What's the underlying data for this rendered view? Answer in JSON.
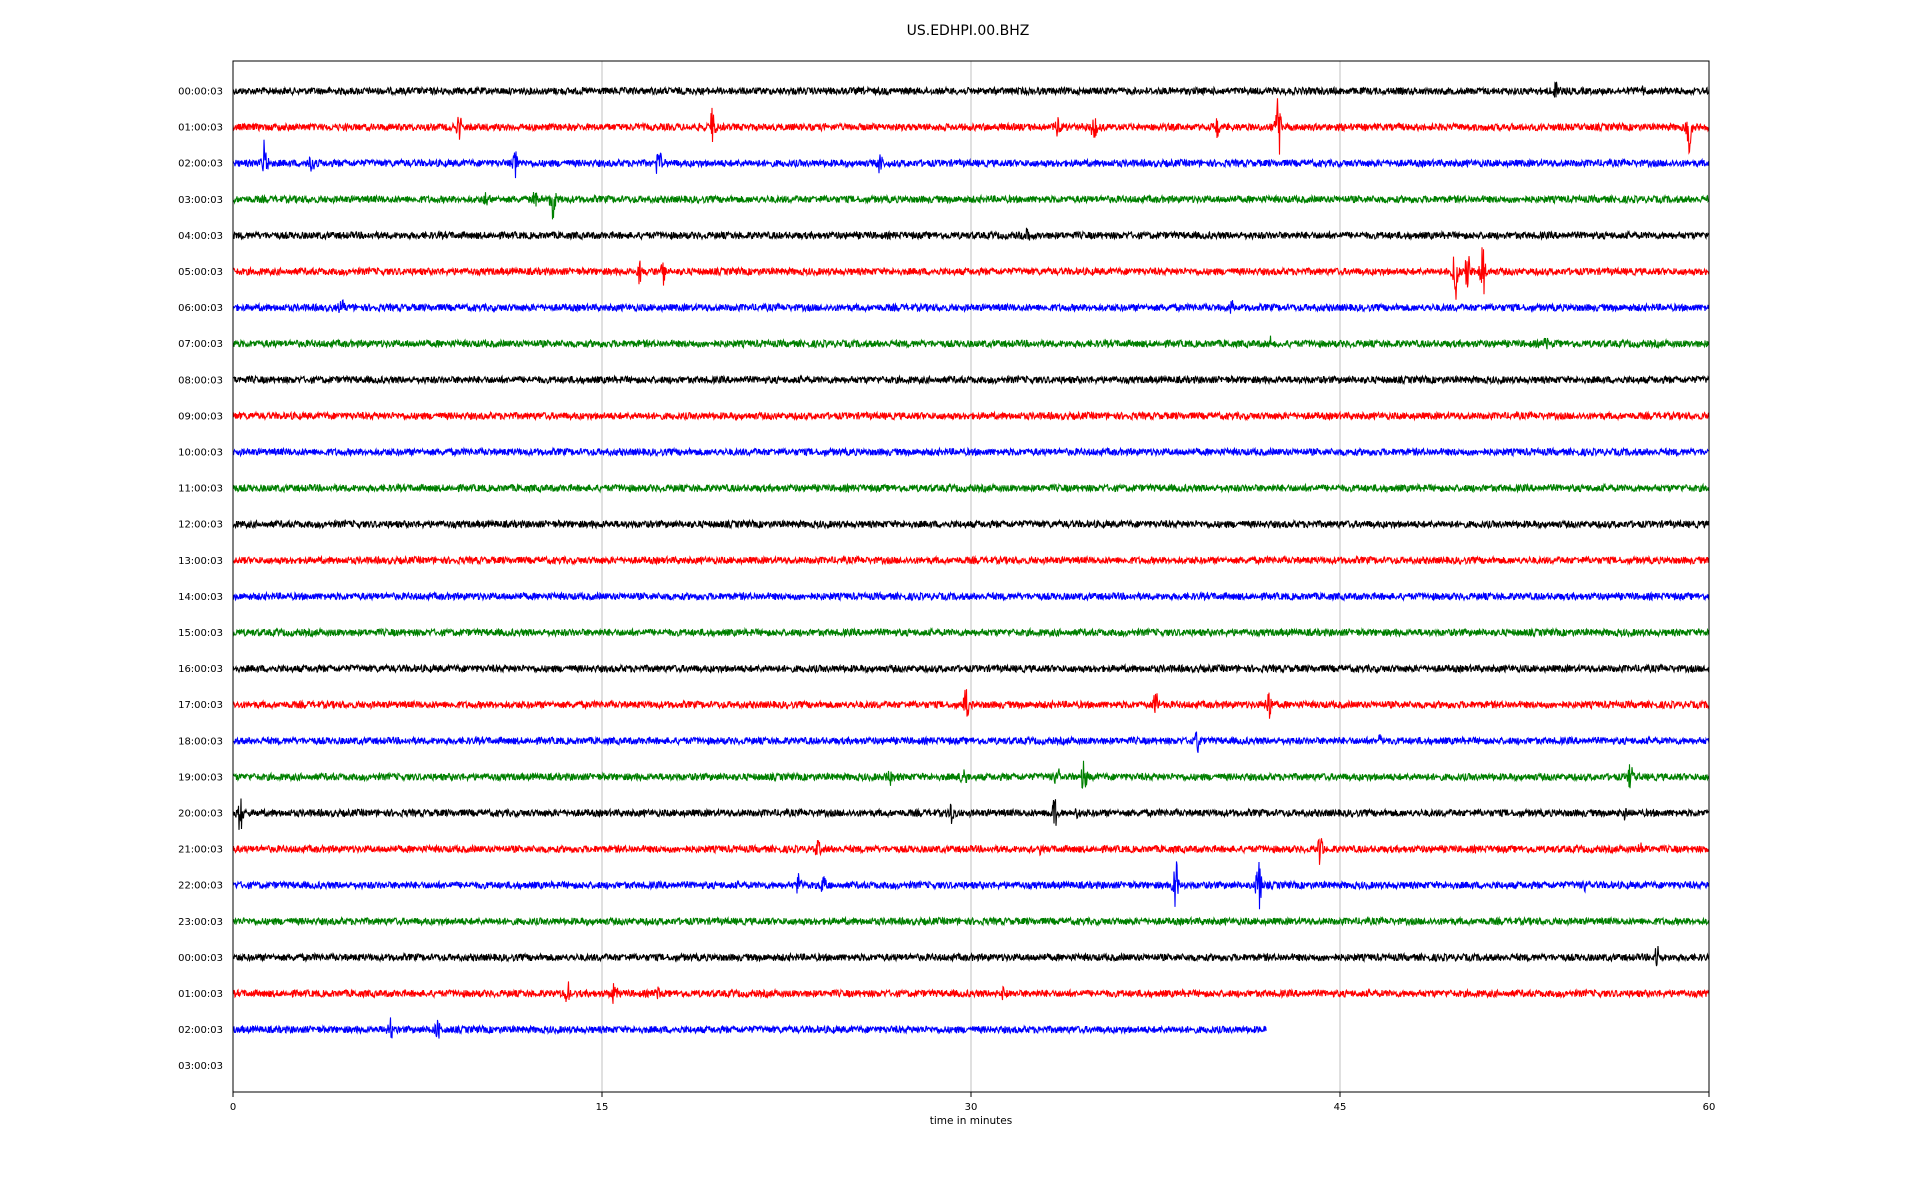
{
  "chart_data": {
    "type": "line",
    "title": "US.EDHPI.00.BHZ",
    "xlabel": "time in minutes",
    "ylabel": "",
    "xlim": [
      0,
      60
    ],
    "x_ticks": [
      "0",
      "15",
      "30",
      "45",
      "60"
    ],
    "grid": "vertical lines at 15, 30, 45",
    "legend": "none",
    "row_colors": [
      "#000000",
      "#ff0000",
      "#0000ff",
      "#008000"
    ],
    "rows": [
      {
        "label": "00:00:03",
        "end": 60,
        "events": [
          {
            "t": 53.8,
            "amp": 0.45
          },
          {
            "t": 57.3,
            "amp": 0.25
          }
        ]
      },
      {
        "label": "01:00:03",
        "end": 60,
        "events": [
          {
            "t": 9.2,
            "amp": 0.35
          },
          {
            "t": 19.5,
            "amp": 0.6
          },
          {
            "t": 33.5,
            "amp": 0.3
          },
          {
            "t": 35.0,
            "amp": 0.4
          },
          {
            "t": 40.0,
            "amp": 0.3
          },
          {
            "t": 42.5,
            "amp": 0.95
          },
          {
            "t": 59.2,
            "amp": 0.85
          }
        ]
      },
      {
        "label": "02:00:03",
        "end": 60,
        "events": [
          {
            "t": 1.3,
            "amp": 0.7
          },
          {
            "t": 3.2,
            "amp": 0.35
          },
          {
            "t": 11.5,
            "amp": 0.55
          },
          {
            "t": 17.3,
            "amp": 0.55
          },
          {
            "t": 26.3,
            "amp": 0.3
          }
        ]
      },
      {
        "label": "03:00:03",
        "end": 60,
        "events": [
          {
            "t": 10.3,
            "amp": 0.35
          },
          {
            "t": 12.3,
            "amp": 0.3
          },
          {
            "t": 13.0,
            "amp": 0.85
          }
        ]
      },
      {
        "label": "04:00:03",
        "end": 60,
        "events": [
          {
            "t": 32.3,
            "amp": 0.2
          }
        ]
      },
      {
        "label": "05:00:03",
        "end": 60,
        "events": [
          {
            "t": 16.5,
            "amp": 0.5
          },
          {
            "t": 17.5,
            "amp": 0.45
          },
          {
            "t": 49.7,
            "amp": 1.0
          },
          {
            "t": 50.2,
            "amp": 0.9
          },
          {
            "t": 50.8,
            "amp": 1.1
          }
        ]
      },
      {
        "label": "06:00:03",
        "end": 60,
        "events": [
          {
            "t": 4.4,
            "amp": 0.2
          },
          {
            "t": 40.6,
            "amp": 0.2
          }
        ]
      },
      {
        "label": "07:00:03",
        "end": 60,
        "events": [
          {
            "t": 53.4,
            "amp": 0.25
          },
          {
            "t": 42.2,
            "amp": 0.15
          }
        ]
      },
      {
        "label": "08:00:03",
        "end": 60,
        "events": []
      },
      {
        "label": "09:00:03",
        "end": 60,
        "events": []
      },
      {
        "label": "10:00:03",
        "end": 60,
        "events": []
      },
      {
        "label": "11:00:03",
        "end": 60,
        "events": []
      },
      {
        "label": "12:00:03",
        "end": 60,
        "events": []
      },
      {
        "label": "13:00:03",
        "end": 60,
        "events": []
      },
      {
        "label": "14:00:03",
        "end": 60,
        "events": []
      },
      {
        "label": "15:00:03",
        "end": 60,
        "events": []
      },
      {
        "label": "16:00:03",
        "end": 60,
        "events": []
      },
      {
        "label": "17:00:03",
        "end": 60,
        "events": [
          {
            "t": 29.8,
            "amp": 0.5
          },
          {
            "t": 37.5,
            "amp": 0.45
          },
          {
            "t": 42.1,
            "amp": 0.6
          }
        ]
      },
      {
        "label": "18:00:03",
        "end": 60,
        "events": [
          {
            "t": 39.2,
            "amp": 0.35
          },
          {
            "t": 46.7,
            "amp": 0.3
          }
        ]
      },
      {
        "label": "19:00:03",
        "end": 60,
        "events": [
          {
            "t": 26.7,
            "amp": 0.3
          },
          {
            "t": 29.7,
            "amp": 0.4
          },
          {
            "t": 33.5,
            "amp": 0.35
          },
          {
            "t": 34.6,
            "amp": 0.5
          },
          {
            "t": 56.8,
            "amp": 0.45
          }
        ]
      },
      {
        "label": "20:00:03",
        "end": 60,
        "events": [
          {
            "t": 0.3,
            "amp": 0.7
          },
          {
            "t": 29.2,
            "amp": 0.35
          },
          {
            "t": 33.4,
            "amp": 0.45
          },
          {
            "t": 34.3,
            "amp": 0.25
          },
          {
            "t": 56.6,
            "amp": 0.25
          }
        ]
      },
      {
        "label": "21:00:03",
        "end": 60,
        "events": [
          {
            "t": 23.8,
            "amp": 0.25
          },
          {
            "t": 32.8,
            "amp": 0.2
          },
          {
            "t": 44.2,
            "amp": 0.55
          },
          {
            "t": 57.2,
            "amp": 0.25
          }
        ]
      },
      {
        "label": "22:00:03",
        "end": 60,
        "events": [
          {
            "t": 23.0,
            "amp": 0.4
          },
          {
            "t": 24.0,
            "amp": 0.35
          },
          {
            "t": 38.3,
            "amp": 1.2
          },
          {
            "t": 41.7,
            "amp": 0.8
          },
          {
            "t": 55.0,
            "amp": 0.2
          }
        ]
      },
      {
        "label": "23:00:03",
        "end": 60,
        "events": []
      },
      {
        "label": "00:00:03",
        "end": 60,
        "events": [
          {
            "t": 57.9,
            "amp": 0.45
          }
        ]
      },
      {
        "label": "01:00:03",
        "end": 60,
        "events": [
          {
            "t": 13.6,
            "amp": 0.35
          },
          {
            "t": 15.5,
            "amp": 0.45
          },
          {
            "t": 17.3,
            "amp": 0.3
          },
          {
            "t": 31.3,
            "amp": 0.25
          }
        ]
      },
      {
        "label": "02:00:03",
        "end": 42.0,
        "events": [
          {
            "t": 6.4,
            "amp": 0.45
          },
          {
            "t": 8.3,
            "amp": 0.3
          }
        ]
      },
      {
        "label": "03:00:03",
        "end": 0,
        "events": []
      }
    ]
  }
}
